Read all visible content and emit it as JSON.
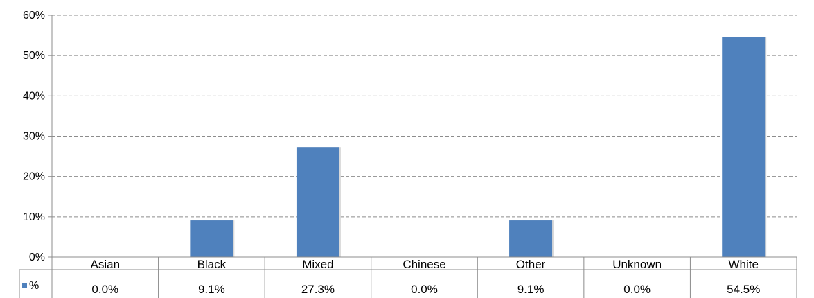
{
  "chart_data": {
    "type": "bar",
    "title": "",
    "xlabel": "",
    "ylabel": "",
    "categories": [
      "Asian",
      "Black",
      "Mixed",
      "Chinese",
      "Other",
      "Unknown",
      "White"
    ],
    "series": [
      {
        "name": "%",
        "values": [
          0.0,
          9.1,
          27.3,
          0.0,
          9.1,
          0.0,
          54.5
        ],
        "labels": [
          "0.0%",
          "9.1%",
          "27.3%",
          "0.0%",
          "9.1%",
          "0.0%",
          "54.5%"
        ],
        "color": "#4f81bd"
      }
    ],
    "ylim": [
      0,
      60
    ],
    "yticks": [
      0,
      10,
      20,
      30,
      40,
      50,
      60
    ],
    "ytick_labels": [
      "0%",
      "10%",
      "20%",
      "30%",
      "40%",
      "50%",
      "60%"
    ],
    "grid": true,
    "grid_style": "dashed",
    "legend_placement": "data-table-left",
    "data_table": true
  }
}
